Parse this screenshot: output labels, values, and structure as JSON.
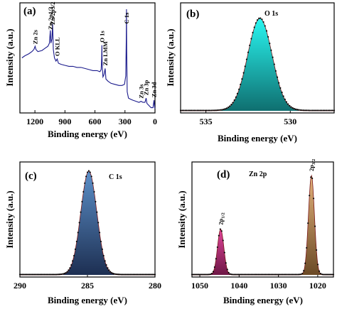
{
  "chart_data": [
    {
      "panel": "(a)",
      "type": "line",
      "ylabel": "Intensity (a.u.)",
      "xlabel": "Binding energy (eV)",
      "xlim": [
        1350,
        0
      ],
      "xticks": [
        "1200",
        "900",
        "600",
        "300",
        "0"
      ],
      "xtick_values": [
        1200,
        900,
        600,
        300,
        0
      ],
      "line_color": "#1a1a8c",
      "annotations": [
        {
          "label": "Zn 2s",
          "x": 1196
        },
        {
          "label": "Zn 2p1/2",
          "x": 1045
        },
        {
          "label": "Zn 2p3/2",
          "x": 1022
        },
        {
          "label": "O KLL",
          "x": 978
        },
        {
          "label": "O 1s",
          "x": 531
        },
        {
          "label": "Zn LMM",
          "x": 498
        },
        {
          "label": "C 1s",
          "x": 285
        },
        {
          "label": "Zn 3s",
          "x": 140
        },
        {
          "label": "Zn 3p",
          "x": 89
        },
        {
          "label": "Zn 3d",
          "x": 10
        }
      ],
      "series": [
        {
          "x": [
            1330,
            1300,
            1260,
            1230,
            1210,
            1198,
            1190,
            1170,
            1130,
            1100,
            1070,
            1055,
            1046,
            1040,
            1030,
            1023,
            1016,
            1005,
            990,
            978,
            965,
            940,
            900,
            860,
            820,
            780,
            740,
            700,
            660,
            620,
            580,
            550,
            538,
            533,
            531,
            528,
            520,
            510,
            498,
            490,
            470,
            440,
            400,
            360,
            330,
            305,
            292,
            287,
            285,
            283,
            278,
            265,
            245,
            220,
            190,
            160,
            140,
            120,
            100,
            89,
            80,
            60,
            40,
            20,
            10,
            4,
            0
          ],
          "y": [
            0.52,
            0.54,
            0.56,
            0.58,
            0.6,
            0.63,
            0.6,
            0.58,
            0.59,
            0.61,
            0.63,
            0.66,
            0.78,
            0.66,
            0.7,
            0.84,
            0.6,
            0.52,
            0.49,
            0.51,
            0.47,
            0.46,
            0.45,
            0.44,
            0.44,
            0.43,
            0.43,
            0.42,
            0.41,
            0.4,
            0.4,
            0.39,
            0.41,
            0.52,
            0.64,
            0.46,
            0.34,
            0.36,
            0.42,
            0.32,
            0.3,
            0.28,
            0.27,
            0.26,
            0.26,
            0.27,
            0.35,
            0.7,
            0.98,
            0.6,
            0.2,
            0.14,
            0.13,
            0.12,
            0.11,
            0.1,
            0.11,
            0.1,
            0.1,
            0.14,
            0.09,
            0.07,
            0.05,
            0.05,
            0.12,
            0.06,
            0.04
          ]
        }
      ]
    },
    {
      "panel": "(b)",
      "type": "area",
      "title": "O 1s",
      "ylabel": "Intensity (a.u.)",
      "xlabel": "Binding energy (eV)",
      "xlim": [
        536.5,
        527.4
      ],
      "xticks": [
        "535",
        "530"
      ],
      "xtick_values": [
        535,
        530
      ],
      "peaks": [
        {
          "center": 531.8,
          "fwhm": 1.7,
          "height": 1.0
        }
      ],
      "fill_colors": [
        "#29f5f0",
        "#0f6f70"
      ]
    },
    {
      "panel": "(c)",
      "type": "area",
      "title": "C 1s",
      "ylabel": "Intensity (a.u.)",
      "xlabel": "Binding energy (eV)",
      "xlim": [
        290,
        280
      ],
      "xticks": [
        "290",
        "285",
        "280"
      ],
      "xtick_values": [
        290,
        285,
        280
      ],
      "peaks": [
        {
          "center": 284.9,
          "fwhm": 1.4,
          "height": 1.0
        }
      ],
      "fill_colors": [
        "#5c8fc8",
        "#1d2f52"
      ]
    },
    {
      "panel": "(d)",
      "type": "area",
      "title": "Zn 2p",
      "ylabel": "Intensity (a.u.)",
      "xlabel": "Binding energy (eV)",
      "xlim": [
        1052,
        1016
      ],
      "xticks": [
        "1050",
        "1040",
        "1030",
        "1020"
      ],
      "xtick_values": [
        1050,
        1040,
        1030,
        1020
      ],
      "peaks": [
        {
          "label": "2p1/2",
          "center": 1044.7,
          "fwhm": 1.9,
          "height": 0.46
        },
        {
          "label": "2p3/2",
          "center": 1021.6,
          "fwhm": 1.8,
          "height": 1.0
        }
      ],
      "fill_colors": [
        [
          "#e0449a",
          "#6e1746"
        ],
        [
          "#e3b27a",
          "#6b4a26"
        ]
      ]
    }
  ]
}
